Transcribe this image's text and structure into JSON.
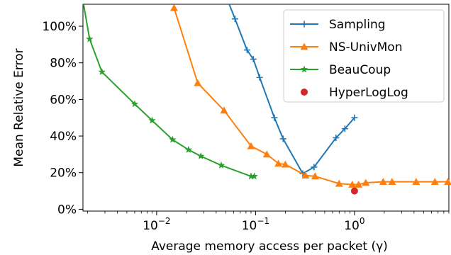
{
  "chart_data": {
    "type": "line",
    "title": "",
    "xlabel": "Average memory access per packet (γ)",
    "ylabel": "Mean Relative Error",
    "xscale": "log",
    "xlim": [
      0.0018,
      9.0
    ],
    "ylim": [
      -1,
      112
    ],
    "x_ticks": [
      {
        "value": 0.01,
        "base": "10",
        "exp": "−2"
      },
      {
        "value": 0.1,
        "base": "10",
        "exp": "−1"
      },
      {
        "value": 1,
        "base": "10",
        "exp": "0"
      }
    ],
    "y_ticks": [
      {
        "value": 0,
        "label": "0%"
      },
      {
        "value": 20,
        "label": "20%"
      },
      {
        "value": 40,
        "label": "40%"
      },
      {
        "value": 60,
        "label": "60%"
      },
      {
        "value": 80,
        "label": "80%"
      },
      {
        "value": 100,
        "label": "100%"
      }
    ],
    "grid": false,
    "legend_position": "top-right",
    "series": [
      {
        "name": "Sampling",
        "color": "#1f77b4",
        "marker": "plus",
        "points": [
          {
            "x": 0.04,
            "y": 130
          },
          {
            "x": 0.062,
            "y": 104
          },
          {
            "x": 0.082,
            "y": 87
          },
          {
            "x": 0.095,
            "y": 82
          },
          {
            "x": 0.11,
            "y": 72
          },
          {
            "x": 0.155,
            "y": 50
          },
          {
            "x": 0.19,
            "y": 38.5
          },
          {
            "x": 0.3,
            "y": 19.5
          },
          {
            "x": 0.39,
            "y": 23
          },
          {
            "x": 0.65,
            "y": 39
          },
          {
            "x": 0.8,
            "y": 44
          },
          {
            "x": 1.0,
            "y": 50
          }
        ]
      },
      {
        "name": "NS-UnivMon",
        "color": "#ff7f0e",
        "marker": "triangle",
        "points": [
          {
            "x": 0.015,
            "y": 110
          },
          {
            "x": 0.026,
            "y": 69
          },
          {
            "x": 0.048,
            "y": 54
          },
          {
            "x": 0.09,
            "y": 34.5
          },
          {
            "x": 0.13,
            "y": 30
          },
          {
            "x": 0.17,
            "y": 25
          },
          {
            "x": 0.2,
            "y": 24.5
          },
          {
            "x": 0.32,
            "y": 18.5
          },
          {
            "x": 0.4,
            "y": 18
          },
          {
            "x": 0.7,
            "y": 14
          },
          {
            "x": 0.95,
            "y": 13.5
          },
          {
            "x": 1.1,
            "y": 13.5
          },
          {
            "x": 1.3,
            "y": 14.5
          },
          {
            "x": 1.95,
            "y": 15
          },
          {
            "x": 2.4,
            "y": 15
          },
          {
            "x": 4.2,
            "y": 15
          },
          {
            "x": 6.5,
            "y": 15
          },
          {
            "x": 8.8,
            "y": 15
          }
        ]
      },
      {
        "name": "BeauCoup",
        "color": "#2ca02c",
        "marker": "star",
        "points": [
          {
            "x": 0.0016,
            "y": 130
          },
          {
            "x": 0.0021,
            "y": 93
          },
          {
            "x": 0.0028,
            "y": 75
          },
          {
            "x": 0.006,
            "y": 57.5
          },
          {
            "x": 0.009,
            "y": 48.5
          },
          {
            "x": 0.0145,
            "y": 38
          },
          {
            "x": 0.021,
            "y": 32.5
          },
          {
            "x": 0.028,
            "y": 29
          },
          {
            "x": 0.045,
            "y": 24
          },
          {
            "x": 0.09,
            "y": 18
          },
          {
            "x": 0.097,
            "y": 18
          }
        ]
      },
      {
        "name": "HyperLogLog",
        "color": "#d62728",
        "marker": "circle",
        "linestyle": "none",
        "points": [
          {
            "x": 1.0,
            "y": 10
          }
        ]
      }
    ]
  }
}
